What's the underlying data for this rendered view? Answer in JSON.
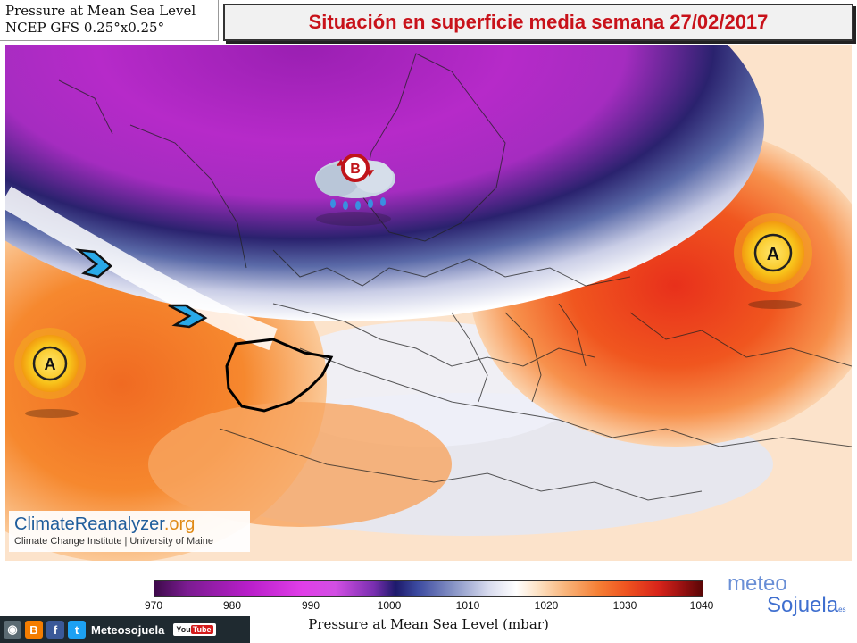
{
  "header": {
    "title_line1": "Pressure at Mean Sea Level",
    "title_line2": "NCEP GFS 0.25°x0.25°",
    "banner": "Situación en superficie media semana 27/02/2017"
  },
  "map": {
    "low_marker": "B",
    "high_marker": "A",
    "icons": [
      "low-pressure-storm-icon",
      "high-pressure-sun-icon",
      "wind-arrow-icon"
    ]
  },
  "credit": {
    "site_main": "ClimateReanalyzer",
    "site_tld": ".org",
    "institution": "Climate Change Institute | University of Maine"
  },
  "colorbar": {
    "ticks": [
      "970",
      "980",
      "990",
      "1000",
      "1010",
      "1020",
      "1030",
      "1040"
    ],
    "label": "Pressure at Mean Sea Level (mbar)",
    "colors": {
      "low": "#7b1c91",
      "mid": "#ffffff",
      "high": "#d8241a"
    }
  },
  "brand": {
    "line1": "meteo",
    "line2": "Sojuela",
    "suffix": "es"
  },
  "social": {
    "name": "Meteosojuela",
    "youtube": "You",
    "youtube_tube": "Tube"
  }
}
